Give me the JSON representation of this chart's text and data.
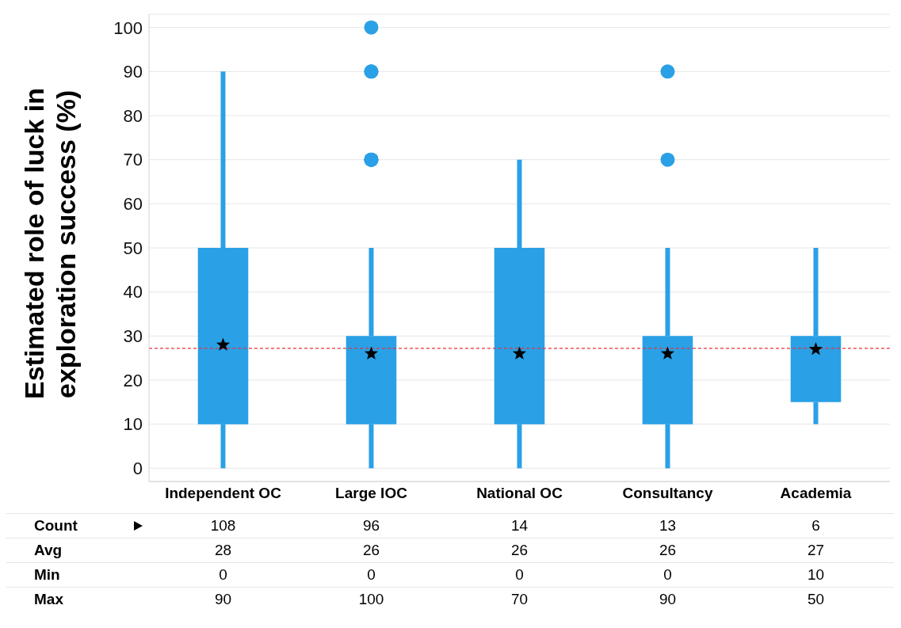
{
  "chart_data": {
    "type": "box",
    "ylabel": "Estimated role of luck in exploration success (%)",
    "categories": [
      "Independent OC",
      "Large IOC",
      "National OC",
      "Consultancy",
      "Academia"
    ],
    "series": [
      {
        "color": "#2aa0e6",
        "boxes": [
          {
            "low": 0,
            "q1": 10,
            "q3": 50,
            "high": 90,
            "mean": 28
          },
          {
            "low": 0,
            "q1": 10,
            "q3": 30,
            "high": 50,
            "mean": 26,
            "outliers": [
              70,
              70,
              70,
              70,
              90,
              90,
              100
            ]
          },
          {
            "low": 0,
            "q1": 10,
            "q3": 50,
            "high": 70,
            "mean": 26
          },
          {
            "low": 0,
            "q1": 10,
            "q3": 30,
            "high": 50,
            "mean": 26,
            "outliers": [
              70,
              90
            ]
          },
          {
            "low": 10,
            "q1": 15,
            "q3": 30,
            "high": 50,
            "mean": 27
          }
        ]
      }
    ],
    "ylim": [
      -3,
      103
    ],
    "yticks": [
      0,
      10,
      20,
      30,
      40,
      50,
      60,
      70,
      80,
      90,
      100
    ],
    "grid": "y",
    "ref_lines": [
      {
        "axis": "y",
        "value": 27.2,
        "color": "#e8323c",
        "line_style": "dashed"
      }
    ],
    "annotations": [
      "Count",
      "108",
      "96",
      "14",
      "13",
      "6",
      "Avg",
      "28",
      "26",
      "26",
      "26",
      "27",
      "Min",
      "0",
      "0",
      "0",
      "0",
      "10",
      "Max",
      "90",
      "100",
      "70",
      "90",
      "50"
    ]
  }
}
